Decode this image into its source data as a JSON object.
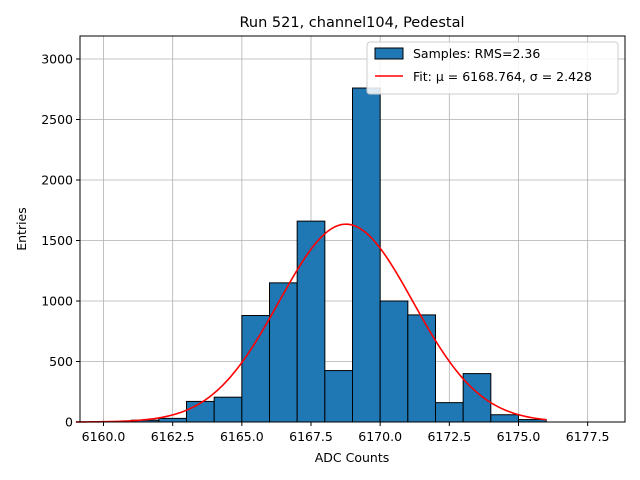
{
  "chart_data": {
    "type": "bar",
    "title": "Run 521, channel104, Pedestal",
    "xlabel": "ADC Counts",
    "ylabel": "Entries",
    "xlim": [
      5159.15,
      6178.85
    ],
    "ylim": [
      0,
      3190
    ],
    "grid": true,
    "legend_position": "top-right",
    "x_ticks": [
      6160.0,
      6162.5,
      6165.0,
      6167.5,
      6170.0,
      6172.5,
      6175.0,
      6177.5
    ],
    "x_tick_labels": [
      "6160.0",
      "6162.5",
      "6165.0",
      "6167.5",
      "6170.0",
      "6172.5",
      "6175.0",
      "6177.5"
    ],
    "y_ticks": [
      0,
      500,
      1000,
      1500,
      2000,
      2500,
      3000
    ],
    "y_tick_labels": [
      "0",
      "500",
      "1000",
      "1500",
      "2000",
      "2500",
      "3000"
    ],
    "histogram": {
      "name": "Samples: RMS=2.36",
      "color": "#1f77b4",
      "edge_color": "#000000",
      "bins": [
        {
          "x0": 6161,
          "x1": 6162,
          "value": 15
        },
        {
          "x0": 6162,
          "x1": 6163,
          "value": 30
        },
        {
          "x0": 6163,
          "x1": 6164,
          "value": 170
        },
        {
          "x0": 6164,
          "x1": 6165,
          "value": 205
        },
        {
          "x0": 6165,
          "x1": 6166,
          "value": 880
        },
        {
          "x0": 6166,
          "x1": 6167,
          "value": 1150
        },
        {
          "x0": 6167,
          "x1": 6168,
          "value": 1660
        },
        {
          "x0": 6168,
          "x1": 6169,
          "value": 425
        },
        {
          "x0": 6169,
          "x1": 6170,
          "value": 2760
        },
        {
          "x0": 6170,
          "x1": 6171,
          "value": 1000
        },
        {
          "x0": 6171,
          "x1": 6172,
          "value": 885
        },
        {
          "x0": 6172,
          "x1": 6173,
          "value": 160
        },
        {
          "x0": 6173,
          "x1": 6174,
          "value": 400
        },
        {
          "x0": 6174,
          "x1": 6175,
          "value": 60
        },
        {
          "x0": 6175,
          "x1": 6176,
          "value": 20
        }
      ]
    },
    "fit": {
      "name": "Fit: μ = 6168.764, σ = 2.428",
      "color": "#ff0000",
      "mu": 6168.764,
      "sigma": 2.428,
      "amplitude": 1635,
      "x_range": [
        6159,
        6176
      ]
    }
  }
}
